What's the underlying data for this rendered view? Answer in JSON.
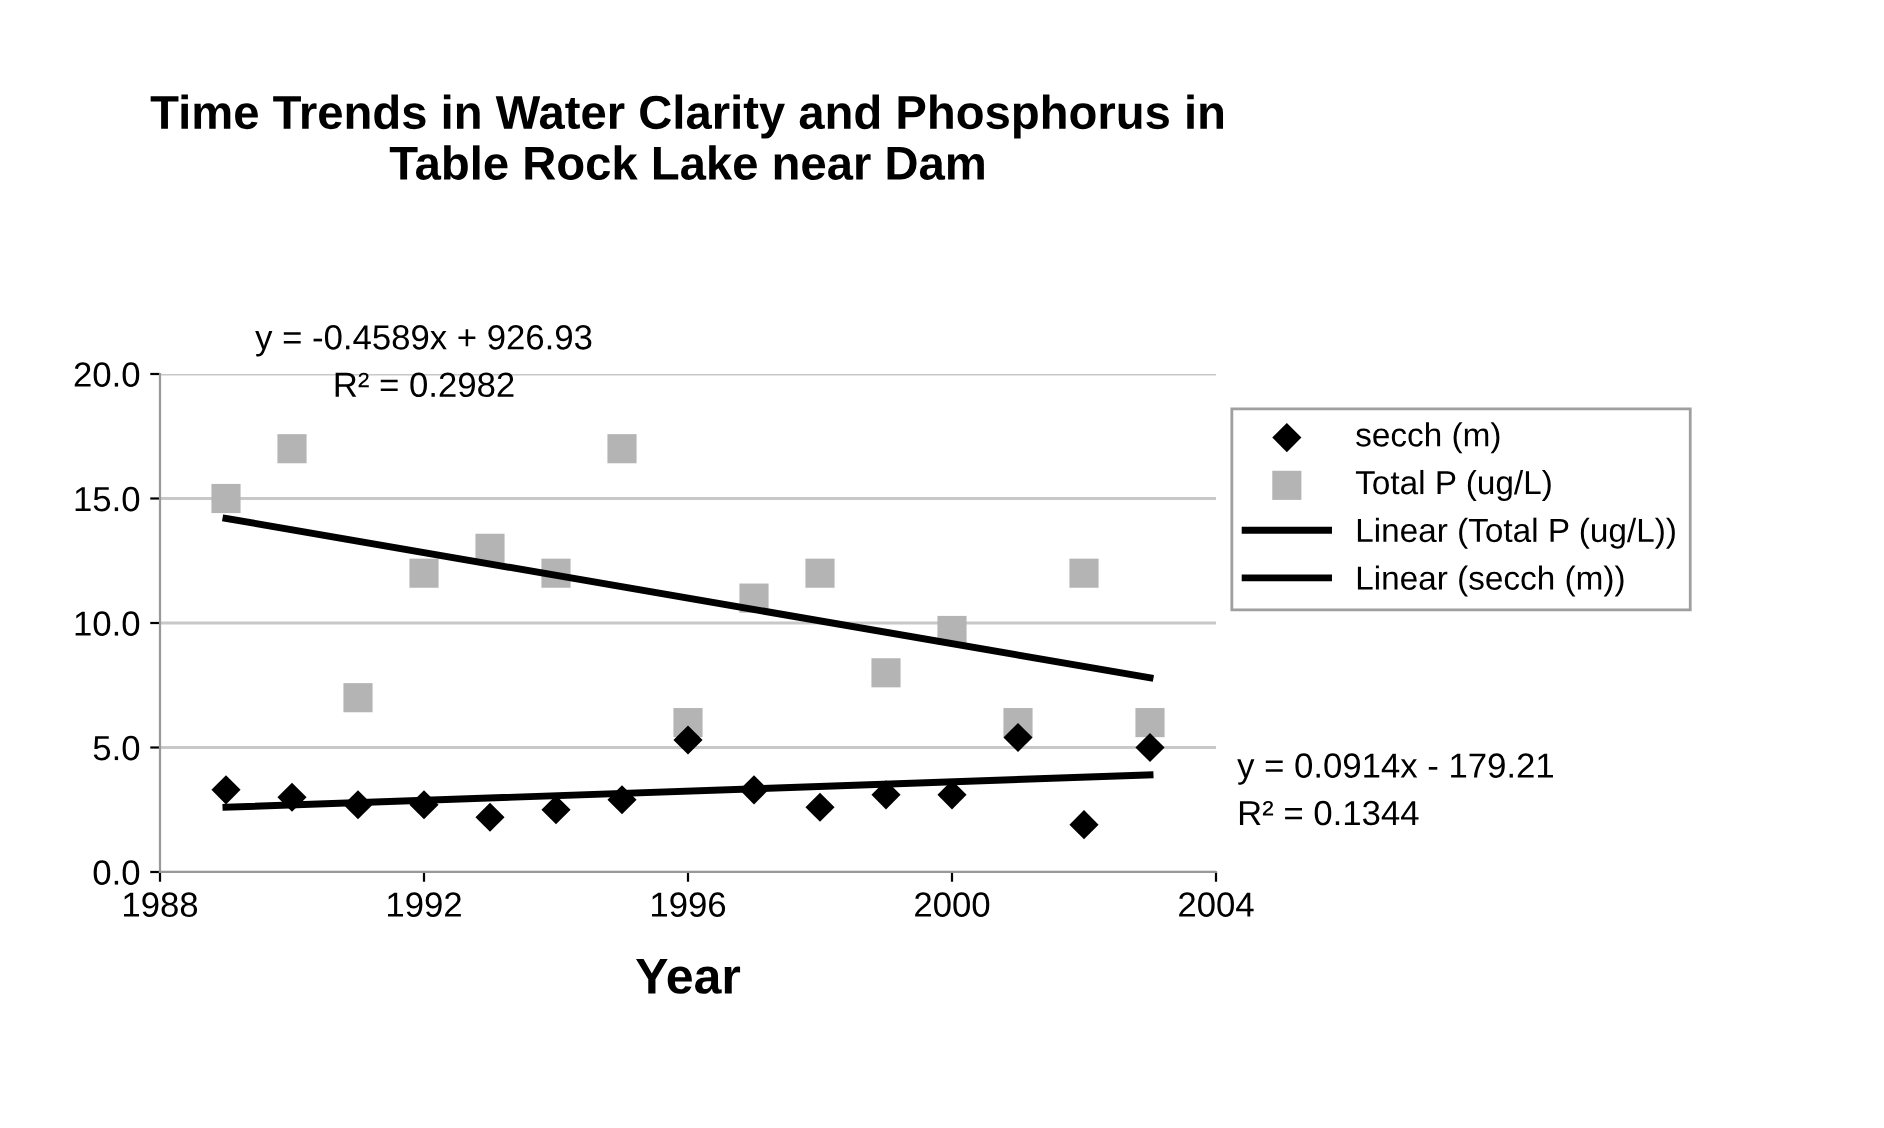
{
  "chart_data": {
    "type": "scatter",
    "title": "Time Trends in Water Clarity and Phosphorus in\nTable Rock Lake near Dam",
    "xlabel": "Year",
    "x": [
      1989,
      1990,
      1991,
      1992,
      1993,
      1994,
      1995,
      1996,
      1997,
      1998,
      1999,
      2000,
      2001,
      2002,
      2003
    ],
    "series": [
      {
        "name": "secch (m)",
        "color": "#000000",
        "marker": "diamond",
        "values": [
          3.3,
          3.0,
          2.7,
          2.7,
          2.2,
          2.5,
          2.9,
          5.3,
          3.3,
          2.6,
          3.1,
          3.1,
          5.4,
          1.9,
          5.0
        ]
      },
      {
        "name": "Total P (ug/L)",
        "color": "#b4b4b4",
        "marker": "square",
        "values": [
          15,
          17,
          7,
          12,
          13,
          12,
          17,
          6,
          11,
          12,
          8,
          9.7,
          6,
          12,
          6
        ]
      },
      {
        "name": "Linear (Total P (ug/L))",
        "type": "line",
        "color": "#000000",
        "values": [
          14.2,
          null,
          null,
          null,
          null,
          null,
          null,
          null,
          null,
          null,
          null,
          null,
          null,
          null,
          7.8
        ]
      },
      {
        "name": "Linear (secch (m))",
        "type": "line",
        "color": "#000000",
        "values": [
          2.6,
          null,
          null,
          null,
          null,
          null,
          null,
          null,
          null,
          null,
          null,
          null,
          null,
          null,
          3.9
        ]
      }
    ],
    "annotations": [
      "y = -0.4589x + 926.93\nR² = 0.2982",
      "y = 0.0914x - 179.21\nR² = 0.1344"
    ],
    "xlim": [
      1988,
      2004
    ],
    "xticks": [
      1988,
      1992,
      1996,
      2000,
      2004
    ],
    "ylim": [
      0,
      20
    ],
    "yticks": [
      {
        "value": 0,
        "label": "0.0"
      },
      {
        "value": 5,
        "label": "5.0"
      },
      {
        "value": 10,
        "label": "10.0"
      },
      {
        "value": 15,
        "label": "15.0"
      },
      {
        "value": 20,
        "label": "20.0"
      }
    ],
    "grid": "y",
    "legend": "right"
  }
}
